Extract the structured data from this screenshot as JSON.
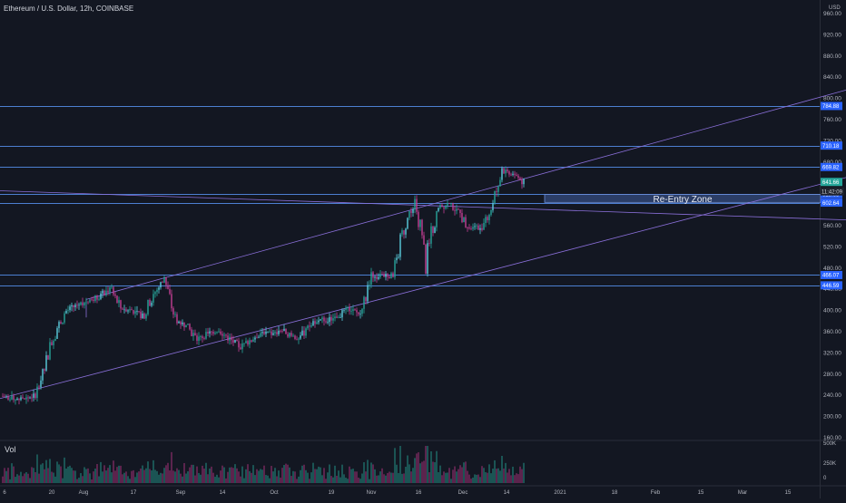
{
  "header": {
    "symbol_title": "Ethereum / U.S. Dollar, 12h, COINBASE",
    "currency_label": "USD",
    "volume_label": "Vol"
  },
  "annotations": {
    "zone_label": "Re-Entry Zone"
  },
  "colors": {
    "background": "#131722",
    "up_candle": "#26a69a",
    "up_candle_alt": "#5bcfe0",
    "down_candle": "#c23f93",
    "horizontal_level": "#4c7fd1",
    "trendline": "#8a6fd9",
    "price_tag": "#2962ff",
    "current_price_tag": "#26a69a",
    "zone_fill": "#2b3d66",
    "axis_text": "#b2b5be"
  },
  "chart_data": {
    "type": "candlestick",
    "title": "Ethereum / U.S. Dollar, 12h, COINBASE",
    "y_axis": {
      "unit": "USD",
      "range": [
        160,
        960
      ],
      "ticks": [
        "960.00",
        "920.00",
        "880.00",
        "840.00",
        "800.00",
        "760.00",
        "720.00",
        "680.00",
        "640.00",
        "600.00",
        "560.00",
        "520.00",
        "480.00",
        "440.00",
        "400.00",
        "360.00",
        "320.00",
        "280.00",
        "240.00",
        "200.00",
        "160.00"
      ]
    },
    "x_axis": {
      "ticks": [
        "6",
        "20",
        "Aug",
        "17",
        "Sep",
        "14",
        "Oct",
        "19",
        "Nov",
        "16",
        "Dec",
        "14",
        "2021",
        "18",
        "Feb",
        "15",
        "Mar",
        "15"
      ]
    },
    "horizontal_levels": [
      {
        "price": 784.88,
        "label": "784.88"
      },
      {
        "price": 710.18,
        "label": "710.18"
      },
      {
        "price": 669.82,
        "label": "669.82"
      },
      {
        "price": 618.63,
        "label": "618.63"
      },
      {
        "price": 602.64,
        "label": "602.64"
      },
      {
        "price": 466.07,
        "label": "466.07"
      },
      {
        "price": 446.59,
        "label": "446.59"
      }
    ],
    "current_price": {
      "price": 641.66,
      "label": "641.66",
      "countdown": "11:42:09"
    },
    "zone": {
      "label": "Re-Entry Zone",
      "from": 603,
      "to": 618
    },
    "volume_axis": {
      "ticks": [
        "500K",
        "250K",
        "0"
      ]
    },
    "price_path_closes": [
      238,
      234,
      231,
      238,
      300,
      360,
      398,
      410,
      418,
      426,
      440,
      404,
      400,
      388,
      430,
      458,
      382,
      370,
      345,
      355,
      364,
      345,
      330,
      345,
      360,
      354,
      362,
      345,
      360,
      385,
      380,
      390,
      402,
      392,
      460,
      465,
      465,
      555,
      610,
      488,
      590,
      600,
      585,
      555,
      555,
      590,
      662,
      658,
      640
    ]
  }
}
